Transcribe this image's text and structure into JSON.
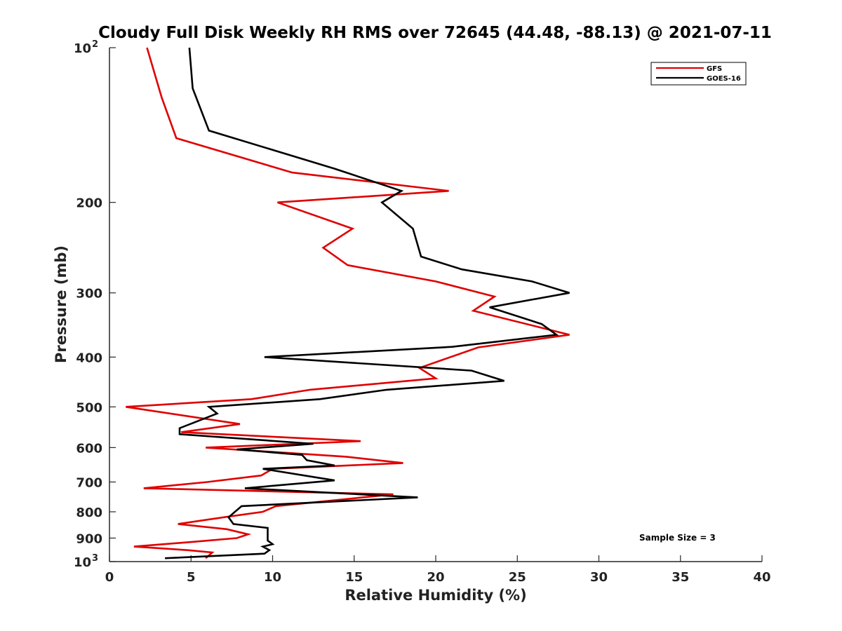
{
  "chart_data": {
    "type": "line",
    "title": "Cloudy Full Disk Weekly RH RMS over 72645 (44.48, -88.13) @ 2021-07-11",
    "xlabel": "Relative Humidity (%)",
    "ylabel": "Pressure (mb)",
    "xlim": [
      0,
      40
    ],
    "ylim": [
      100,
      1000
    ],
    "y_scale": "log",
    "y_reversed": true,
    "grid": false,
    "legend_position": "top-right",
    "annotation": "Sample Size = 3",
    "x_ticks": [
      "0",
      "5",
      "10",
      "15",
      "20",
      "25",
      "30",
      "35",
      "40"
    ],
    "y_ticks": [
      {
        "value": 100,
        "base": "10",
        "exp": "2"
      },
      {
        "value": 200,
        "label": "200"
      },
      {
        "value": 300,
        "label": "300"
      },
      {
        "value": 400,
        "label": "400"
      },
      {
        "value": 500,
        "label": "500"
      },
      {
        "value": 600,
        "label": "600"
      },
      {
        "value": 700,
        "label": "700"
      },
      {
        "value": 800,
        "label": "800"
      },
      {
        "value": 900,
        "label": "900"
      },
      {
        "value": 1000,
        "base": "10",
        "exp": "3"
      }
    ],
    "series": [
      {
        "name": "GFS",
        "color": "#e00000",
        "points": [
          [
            2.3,
            100
          ],
          [
            3.2,
            125
          ],
          [
            4.1,
            150
          ],
          [
            11.2,
            175
          ],
          [
            20.8,
            190
          ],
          [
            10.3,
            200
          ],
          [
            14.9,
            225
          ],
          [
            13.1,
            245
          ],
          [
            14.6,
            265
          ],
          [
            20.0,
            285
          ],
          [
            23.6,
            305
          ],
          [
            22.3,
            325
          ],
          [
            28.2,
            362
          ],
          [
            22.6,
            383
          ],
          [
            19.0,
            420
          ],
          [
            20.0,
            440
          ],
          [
            12.3,
            463
          ],
          [
            8.7,
            483
          ],
          [
            1.0,
            500
          ],
          [
            8.0,
            540
          ],
          [
            4.4,
            560
          ],
          [
            15.4,
            583
          ],
          [
            5.9,
            600
          ],
          [
            14.5,
            625
          ],
          [
            18.0,
            643
          ],
          [
            10.0,
            660
          ],
          [
            9.3,
            680
          ],
          [
            6.0,
            700
          ],
          [
            2.1,
            720
          ],
          [
            17.4,
            740
          ],
          [
            10.2,
            780
          ],
          [
            9.4,
            800
          ],
          [
            7.0,
            820
          ],
          [
            4.2,
            845
          ],
          [
            7.2,
            865
          ],
          [
            8.5,
            885
          ],
          [
            7.8,
            900
          ],
          [
            5.2,
            915
          ],
          [
            1.5,
            935
          ],
          [
            4.8,
            950
          ],
          [
            6.3,
            960
          ],
          [
            5.9,
            985
          ]
        ]
      },
      {
        "name": "GOES-16",
        "color": "#000000",
        "points": [
          [
            4.9,
            100
          ],
          [
            5.1,
            120
          ],
          [
            6.1,
            145
          ],
          [
            13.8,
            172
          ],
          [
            17.9,
            190
          ],
          [
            16.7,
            200
          ],
          [
            18.6,
            225
          ],
          [
            19.1,
            255
          ],
          [
            21.6,
            270
          ],
          [
            25.9,
            285
          ],
          [
            28.2,
            300
          ],
          [
            23.3,
            320
          ],
          [
            26.5,
            345
          ],
          [
            27.4,
            362
          ],
          [
            21.0,
            382
          ],
          [
            9.5,
            400
          ],
          [
            22.2,
            425
          ],
          [
            24.2,
            445
          ],
          [
            17.0,
            463
          ],
          [
            12.9,
            483
          ],
          [
            6.1,
            500
          ],
          [
            6.6,
            515
          ],
          [
            4.3,
            550
          ],
          [
            4.3,
            565
          ],
          [
            12.5,
            590
          ],
          [
            7.8,
            605
          ],
          [
            11.8,
            620
          ],
          [
            12.1,
            635
          ],
          [
            13.8,
            650
          ],
          [
            9.4,
            660
          ],
          [
            13.8,
            695
          ],
          [
            8.3,
            720
          ],
          [
            18.9,
            750
          ],
          [
            8.1,
            780
          ],
          [
            7.3,
            820
          ],
          [
            7.6,
            845
          ],
          [
            9.7,
            860
          ],
          [
            9.7,
            910
          ],
          [
            10.0,
            925
          ],
          [
            9.4,
            935
          ],
          [
            9.8,
            950
          ],
          [
            9.5,
            965
          ],
          [
            3.4,
            985
          ]
        ]
      }
    ]
  }
}
